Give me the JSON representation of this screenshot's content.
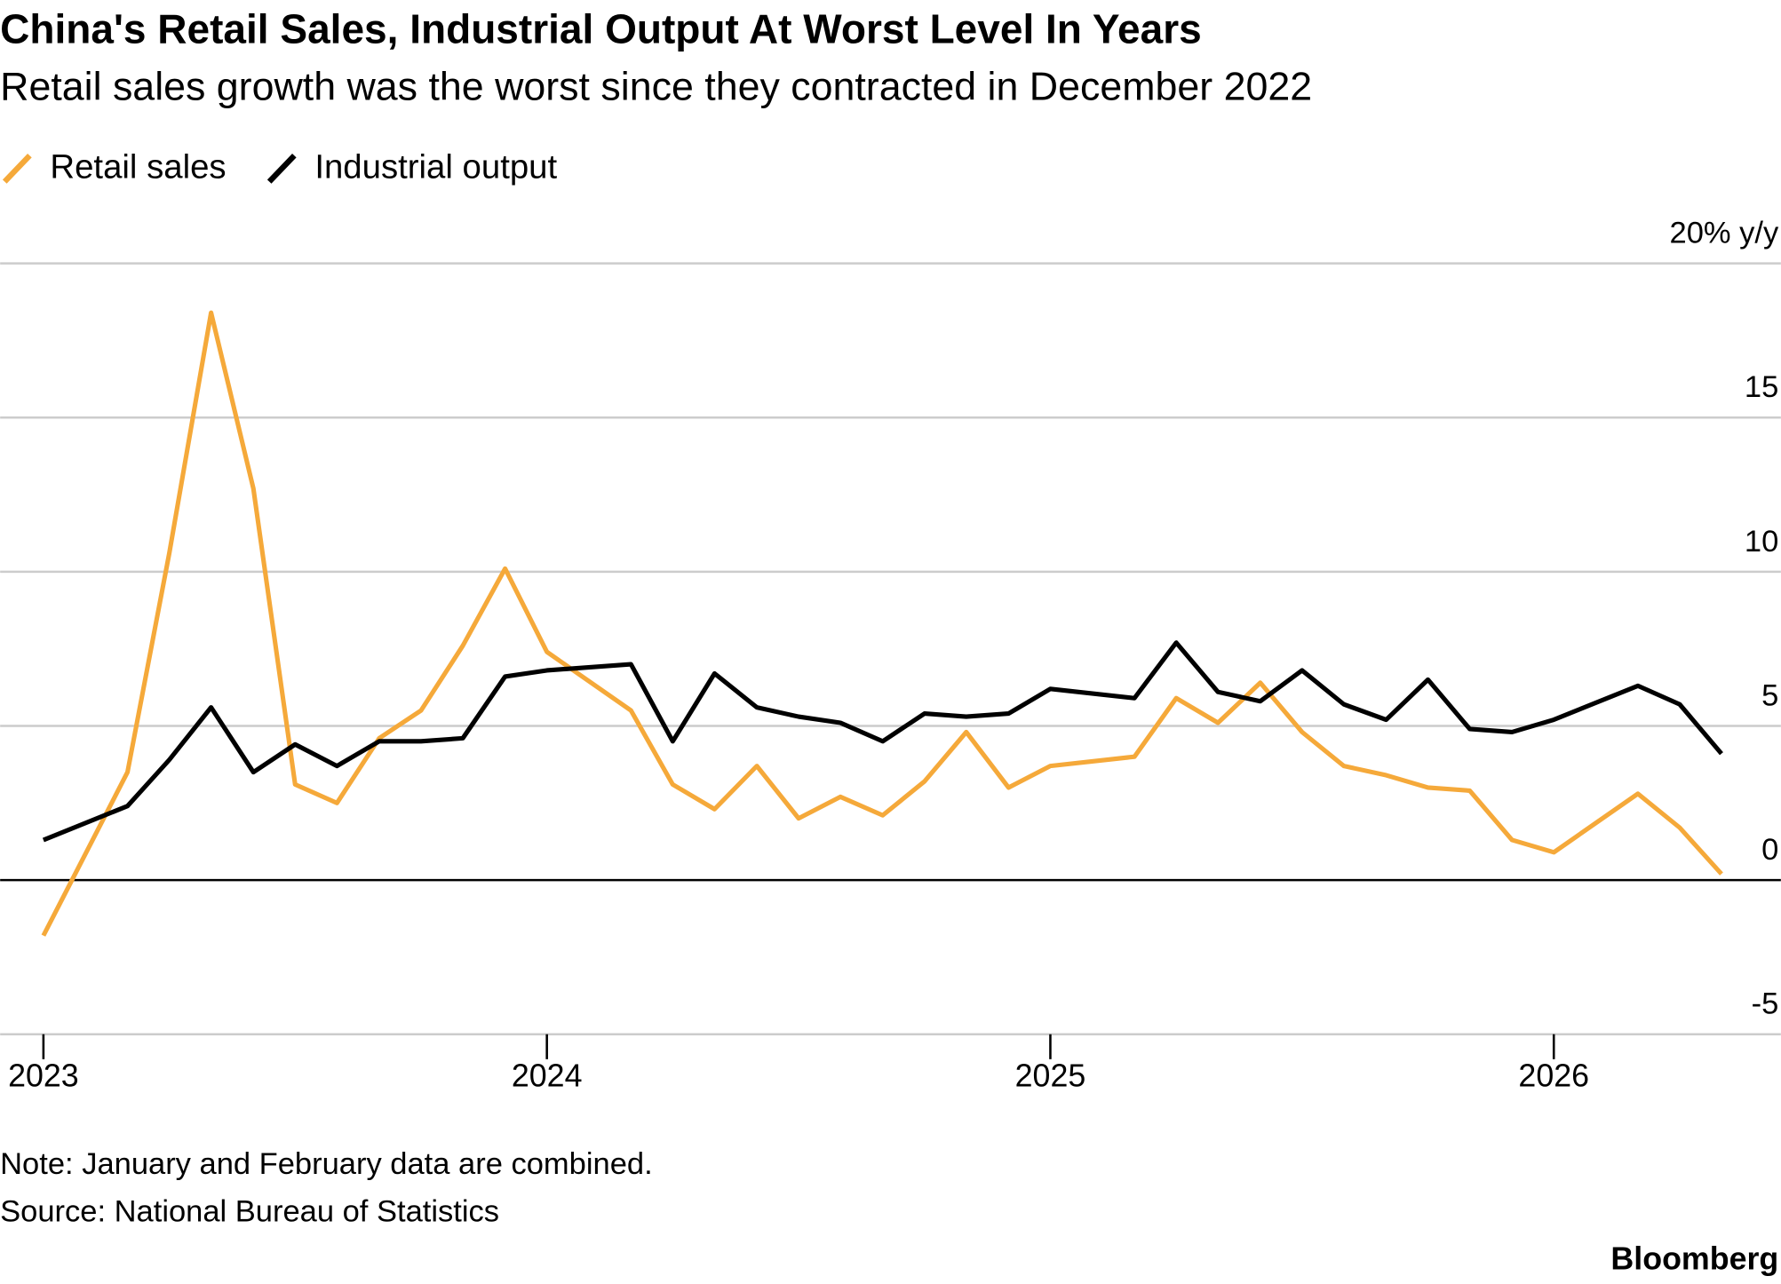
{
  "chart_data": {
    "type": "line",
    "title": "China's Retail Sales, Industrial Output At Worst Level In Years",
    "subtitle": "Retail sales growth was the worst since they contracted in December 2022",
    "note": "Note: January and February data are combined.",
    "source": "Source: National Bureau of Statistics",
    "brand": "Bloomberg",
    "x": [
      2023,
      2023.167,
      2023.25,
      2023.333,
      2023.417,
      2023.5,
      2023.583,
      2023.667,
      2023.75,
      2023.833,
      2023.917,
      2024,
      2024.167,
      2024.25,
      2024.333,
      2024.417,
      2024.5,
      2024.583,
      2024.667,
      2024.75,
      2024.833,
      2024.917,
      2025,
      2025.167,
      2025.25,
      2025.333,
      2025.417,
      2025.5,
      2025.583,
      2025.667,
      2025.75,
      2025.833,
      2025.917,
      2026,
      2026.167,
      2026.25,
      2026.333
    ],
    "series": [
      {
        "name": "Retail sales",
        "color": "#f5a93a",
        "values": [
          -1.8,
          3.5,
          10.6,
          18.4,
          12.7,
          3.1,
          2.5,
          4.6,
          5.5,
          7.6,
          10.1,
          7.4,
          5.5,
          3.1,
          2.3,
          3.7,
          2.0,
          2.7,
          2.1,
          3.2,
          4.8,
          3.0,
          3.7,
          4.0,
          5.9,
          5.1,
          6.4,
          4.8,
          3.7,
          3.4,
          3.0,
          2.9,
          1.3,
          0.9,
          2.8,
          1.7,
          0.2
        ]
      },
      {
        "name": "Industrial output",
        "color": "#000000",
        "values": [
          1.3,
          2.4,
          3.9,
          5.6,
          3.5,
          4.4,
          3.7,
          4.5,
          4.5,
          4.6,
          6.6,
          6.8,
          7.0,
          4.5,
          6.7,
          5.6,
          5.3,
          5.1,
          4.5,
          5.4,
          5.3,
          5.4,
          6.2,
          5.9,
          7.7,
          6.1,
          5.8,
          6.8,
          5.7,
          5.2,
          6.5,
          4.9,
          4.8,
          5.2,
          6.3,
          5.7,
          4.1
        ]
      }
    ],
    "xlim": [
      2022.914,
      2026.451
    ],
    "xticks": [
      2023,
      2024,
      2025,
      2026
    ],
    "ylim": [
      -5,
      20
    ],
    "yticks": [
      -5,
      0,
      5,
      10,
      15,
      {
        "value": 20,
        "label": "20% y/y"
      }
    ],
    "grid": true
  }
}
